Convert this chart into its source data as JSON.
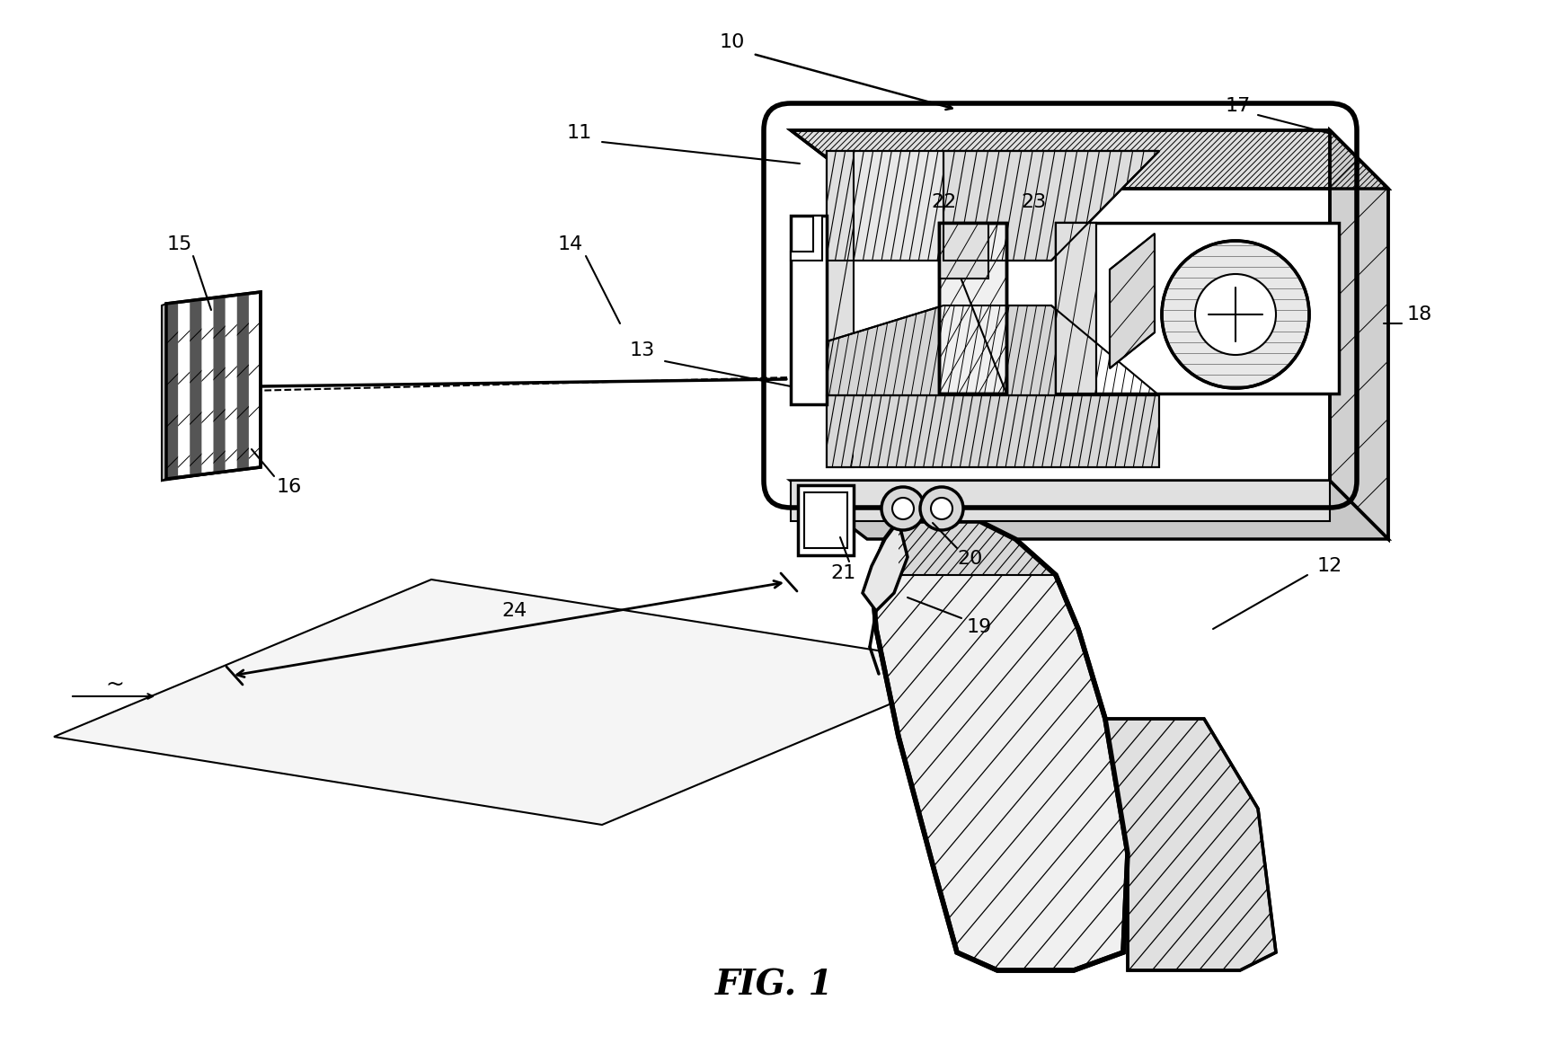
{
  "bg_color": "#ffffff",
  "fig_title": "FIG. 1",
  "fig_title_fontsize": 28,
  "ref_fontsize": 16,
  "lw_main": 2.5,
  "lw_thick": 4.0,
  "lw_thin": 1.5,
  "lw_hatch": 0.8
}
